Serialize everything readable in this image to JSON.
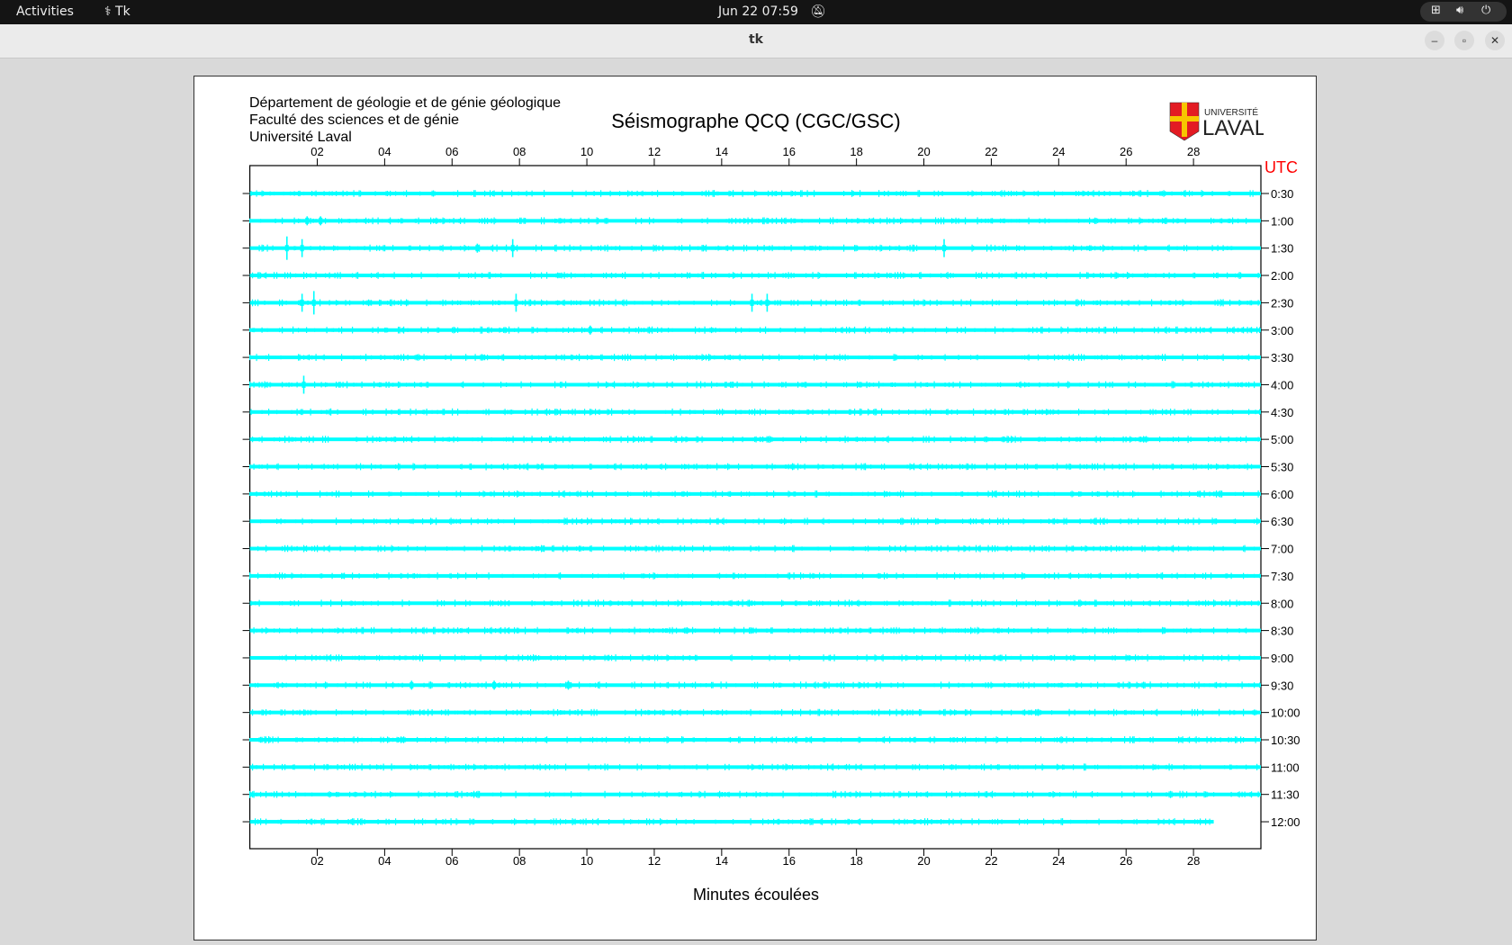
{
  "topbar": {
    "activities": "Activities",
    "app_name": "Tk",
    "clock": "Jun 22  07:59"
  },
  "window": {
    "title": "tk"
  },
  "header": {
    "lines": [
      "Département de géologie et de génie géologique",
      "Faculté des sciences et de génie",
      "Université Laval"
    ],
    "title": "Séismographe QCQ (CGC/GSC)",
    "logo_text": [
      "UNIVERSITÉ",
      "LAVAL"
    ]
  },
  "chart_data": {
    "type": "line",
    "xlabel": "Minutes écoulées",
    "right_axis_title": "UTC",
    "xlim": [
      0,
      30
    ],
    "x_ticks": [
      "02",
      "04",
      "06",
      "08",
      "10",
      "12",
      "14",
      "16",
      "18",
      "20",
      "22",
      "24",
      "26",
      "28"
    ],
    "rows": [
      "0:30",
      "1:00",
      "1:30",
      "2:00",
      "2:30",
      "3:00",
      "3:30",
      "4:00",
      "4:30",
      "5:00",
      "5:30",
      "6:00",
      "6:30",
      "7:00",
      "7:30",
      "8:00",
      "8:30",
      "9:00",
      "9:30",
      "10:00",
      "10:30",
      "11:00",
      "11:30",
      "12:00"
    ],
    "last_row_end_minute": 28.6,
    "events": [
      {
        "row": "1:00",
        "minute": 1.7,
        "amplitude": "small"
      },
      {
        "row": "1:00",
        "minute": 2.1,
        "amplitude": "small"
      },
      {
        "row": "1:30",
        "minute": 1.1,
        "amplitude": "large"
      },
      {
        "row": "1:30",
        "minute": 1.55,
        "amplitude": "medium"
      },
      {
        "row": "1:30",
        "minute": 6.75,
        "amplitude": "small"
      },
      {
        "row": "1:30",
        "minute": 7.8,
        "amplitude": "medium"
      },
      {
        "row": "1:30",
        "minute": 20.6,
        "amplitude": "medium"
      },
      {
        "row": "2:30",
        "minute": 1.55,
        "amplitude": "medium"
      },
      {
        "row": "2:30",
        "minute": 1.9,
        "amplitude": "large"
      },
      {
        "row": "2:30",
        "minute": 7.9,
        "amplitude": "medium"
      },
      {
        "row": "2:30",
        "minute": 14.9,
        "amplitude": "medium"
      },
      {
        "row": "2:30",
        "minute": 15.35,
        "amplitude": "medium"
      },
      {
        "row": "3:00",
        "minute": 10.1,
        "amplitude": "small"
      },
      {
        "row": "4:00",
        "minute": 1.6,
        "amplitude": "medium"
      },
      {
        "row": "9:30",
        "minute": 4.8,
        "amplitude": "small"
      },
      {
        "row": "9:30",
        "minute": 7.25,
        "amplitude": "small"
      },
      {
        "row": "9:30",
        "minute": 9.45,
        "amplitude": "small"
      }
    ],
    "colors": {
      "trace": "#00ffff",
      "utc": "#ff0000",
      "axis": "#000000"
    }
  }
}
